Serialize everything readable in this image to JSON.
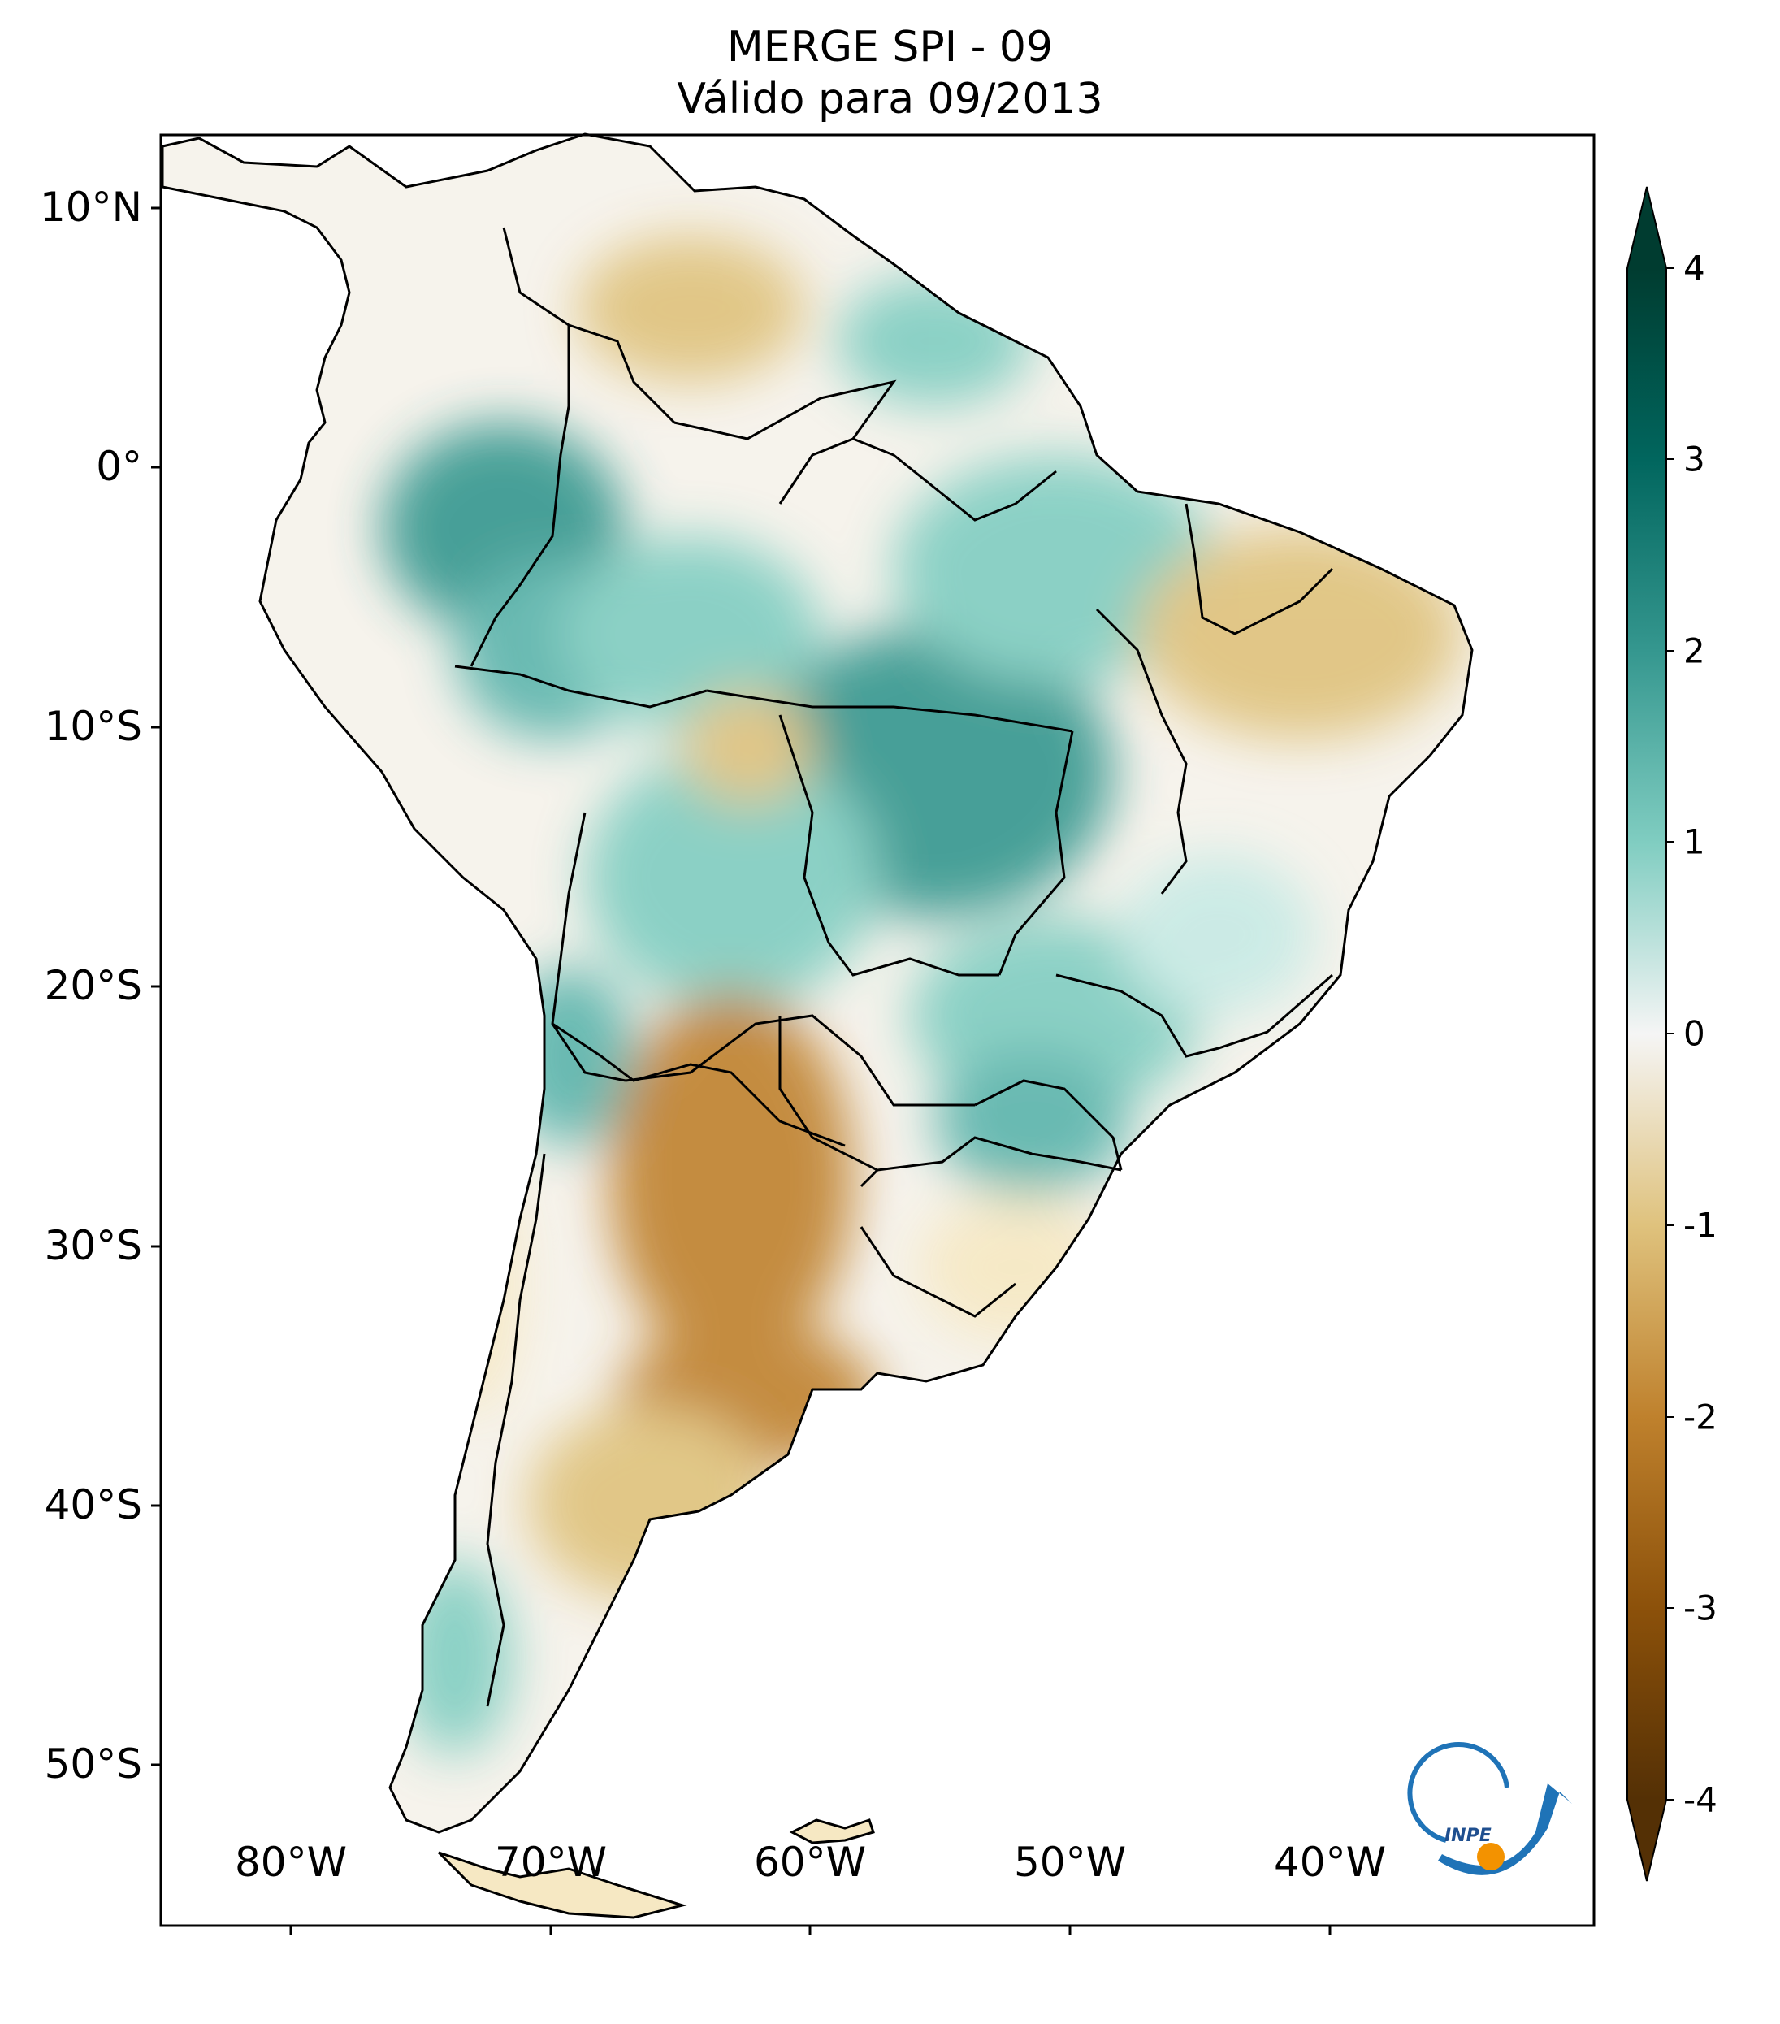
{
  "map": {
    "title": "MERGE   SPI - 09",
    "subtitle": "Válido para 09/2013",
    "latitude_labels": [
      "10°N",
      "0°",
      "10°S",
      "20°S",
      "30°S",
      "40°S",
      "50°S"
    ],
    "longitude_labels": [
      "80°W",
      "70°W",
      "60°W",
      "50°W",
      "40°W"
    ],
    "region": "South America",
    "extent": {
      "lon_min": -86,
      "lon_max": -31,
      "lat_min": -56,
      "lat_max": 13
    }
  },
  "colorbar": {
    "ticks": [
      "4",
      "3",
      "2",
      "1",
      "0",
      "-1",
      "-2",
      "-3",
      "-4"
    ],
    "range": [
      -4,
      4
    ],
    "extend": "both",
    "colormap": "BrBG",
    "colors": {
      "max": "#003c30",
      "mid": "#f5f5f5",
      "min": "#543005"
    }
  },
  "logo": {
    "text": "INPE",
    "colors": {
      "blue": "#1f73b7",
      "orange": "#f39200"
    }
  }
}
